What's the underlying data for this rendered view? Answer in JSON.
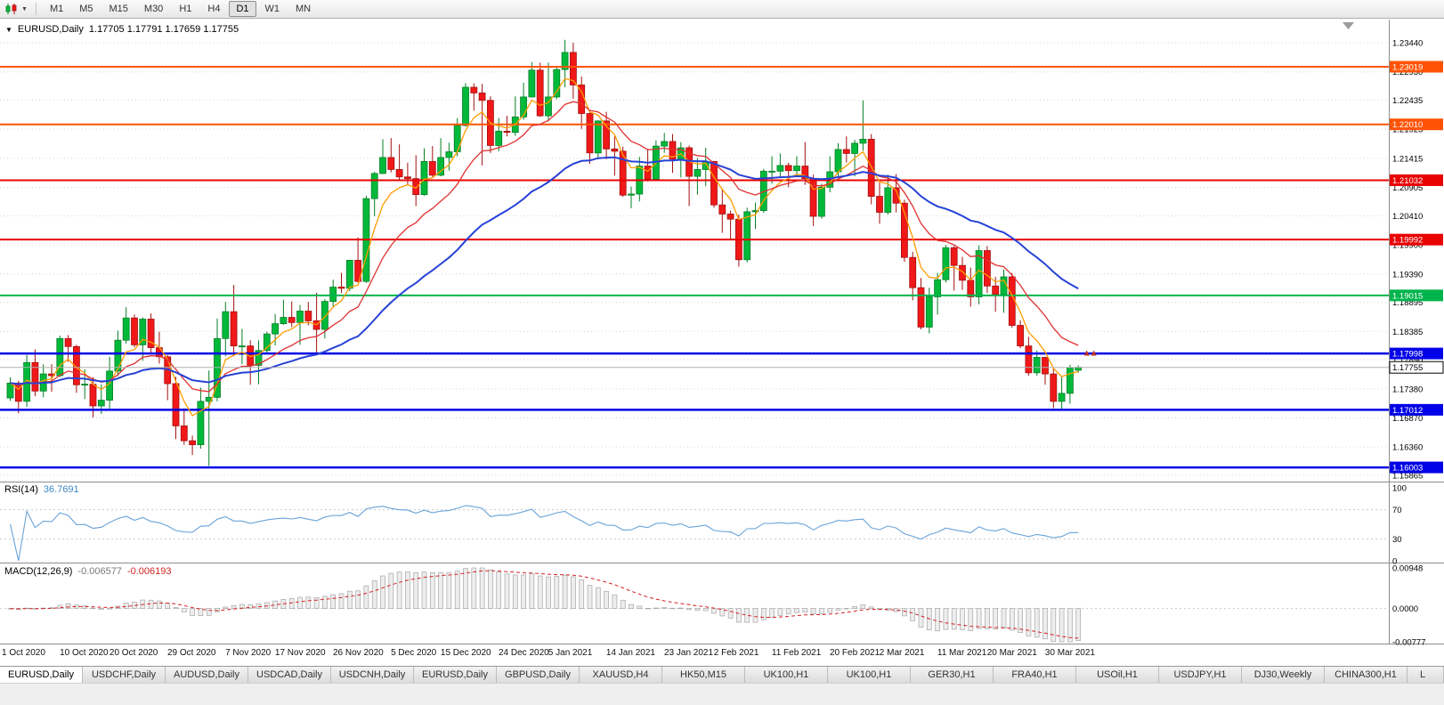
{
  "toolbar": {
    "timeframes": [
      "M1",
      "M5",
      "M15",
      "M30",
      "H1",
      "H4",
      "D1",
      "W1",
      "MN"
    ],
    "active_timeframe": "D1"
  },
  "chart_header": {
    "collapse_arrow": "▼",
    "symbol_period": "EURUSD,Daily",
    "ohlc": "1.17705 1.17791 1.17659 1.17755"
  },
  "indicators": {
    "rsi": {
      "name": "RSI(14)",
      "value": "36.7691"
    },
    "macd": {
      "name": "MACD(12,26,9)",
      "main_value": "-0.006577",
      "signal_value": "-0.006193"
    }
  },
  "chart_data": {
    "type": "candlestick",
    "symbol": "EURUSD",
    "period": "Daily",
    "current": {
      "open": "1.17705",
      "high": "1.17791",
      "low": "1.17659",
      "close": "1.17755"
    },
    "y_axis": {
      "ticks": [
        "1.23440",
        "1.22930",
        "1.22435",
        "1.21925",
        "1.21415",
        "1.20905",
        "1.20410",
        "1.19900",
        "1.19390",
        "1.18895",
        "1.18385",
        "1.17890",
        "1.17380",
        "1.16870",
        "1.16360",
        "1.15865"
      ]
    },
    "x_labels": [
      {
        "text": "1 Oct 2020",
        "bar": 0
      },
      {
        "text": "10 Oct 2020",
        "bar": 7
      },
      {
        "text": "20 Oct 2020",
        "bar": 13
      },
      {
        "text": "29 Oct 2020",
        "bar": 20
      },
      {
        "text": "7 Nov 2020",
        "bar": 27
      },
      {
        "text": "17 Nov 2020",
        "bar": 33
      },
      {
        "text": "26 Nov 2020",
        "bar": 40
      },
      {
        "text": "5 Dec 2020",
        "bar": 47
      },
      {
        "text": "15 Dec 2020",
        "bar": 53
      },
      {
        "text": "24 Dec 2020",
        "bar": 60
      },
      {
        "text": "5 Jan 2021",
        "bar": 66
      },
      {
        "text": "14 Jan 2021",
        "bar": 73
      },
      {
        "text": "23 Jan 2021",
        "bar": 80
      },
      {
        "text": "2 Feb 2021",
        "bar": 86
      },
      {
        "text": "11 Feb 2021",
        "bar": 93
      },
      {
        "text": "20 Feb 2021",
        "bar": 100
      },
      {
        "text": "2 Mar 2021",
        "bar": 106
      },
      {
        "text": "11 Mar 2021",
        "bar": 113
      },
      {
        "text": "20 Mar 2021",
        "bar": 119
      },
      {
        "text": "30 Mar 2021",
        "bar": 126
      }
    ],
    "candles": [
      [
        1.1722,
        1.1758,
        1.1717,
        1.1748
      ],
      [
        1.1748,
        1.1752,
        1.1695,
        1.1716
      ],
      [
        1.1716,
        1.1797,
        1.1706,
        1.1784
      ],
      [
        1.1784,
        1.1807,
        1.1725,
        1.1734
      ],
      [
        1.1734,
        1.1781,
        1.1723,
        1.1764
      ],
      [
        1.1764,
        1.1781,
        1.1733,
        1.1761
      ],
      [
        1.1761,
        1.1831,
        1.1758,
        1.1826
      ],
      [
        1.1826,
        1.1832,
        1.1785,
        1.1812
      ],
      [
        1.1812,
        1.1815,
        1.1731,
        1.1745
      ],
      [
        1.1745,
        1.1772,
        1.172,
        1.1746
      ],
      [
        1.1746,
        1.1758,
        1.1688,
        1.1708
      ],
      [
        1.1708,
        1.1746,
        1.1694,
        1.1718
      ],
      [
        1.1718,
        1.1794,
        1.1703,
        1.1769
      ],
      [
        1.1769,
        1.184,
        1.176,
        1.1823
      ],
      [
        1.1823,
        1.1881,
        1.1817,
        1.1862
      ],
      [
        1.1862,
        1.1868,
        1.1811,
        1.1815
      ],
      [
        1.1815,
        1.1863,
        1.1787,
        1.186
      ],
      [
        1.186,
        1.187,
        1.18,
        1.181
      ],
      [
        1.181,
        1.1838,
        1.1782,
        1.1794
      ],
      [
        1.1794,
        1.1797,
        1.1718,
        1.1747
      ],
      [
        1.1747,
        1.1759,
        1.165,
        1.1673
      ],
      [
        1.1673,
        1.1704,
        1.164,
        1.1647
      ],
      [
        1.1647,
        1.1656,
        1.1622,
        1.164
      ],
      [
        1.164,
        1.174,
        1.1633,
        1.1716
      ],
      [
        1.1716,
        1.177,
        1.1603,
        1.1723
      ],
      [
        1.1723,
        1.1861,
        1.1716,
        1.1826
      ],
      [
        1.1826,
        1.189,
        1.1795,
        1.1873
      ],
      [
        1.1873,
        1.192,
        1.1795,
        1.1813
      ],
      [
        1.1813,
        1.1843,
        1.1781,
        1.1813
      ],
      [
        1.1813,
        1.1823,
        1.1745,
        1.1779
      ],
      [
        1.1779,
        1.1823,
        1.1746,
        1.1805
      ],
      [
        1.1805,
        1.1838,
        1.1799,
        1.1834
      ],
      [
        1.1834,
        1.1869,
        1.1814,
        1.1852
      ],
      [
        1.1852,
        1.1894,
        1.185,
        1.1863
      ],
      [
        1.1863,
        1.1891,
        1.1846,
        1.1854
      ],
      [
        1.1854,
        1.1885,
        1.1815,
        1.1874
      ],
      [
        1.1874,
        1.189,
        1.1849,
        1.1857
      ],
      [
        1.1857,
        1.1906,
        1.18,
        1.1842
      ],
      [
        1.1842,
        1.1895,
        1.1826,
        1.1891
      ],
      [
        1.1891,
        1.1929,
        1.1881,
        1.1916
      ],
      [
        1.1916,
        1.1941,
        1.1906,
        1.1914
      ],
      [
        1.1914,
        1.1964,
        1.1909,
        1.1963
      ],
      [
        1.1963,
        1.2003,
        1.1924,
        1.1926
      ],
      [
        1.1926,
        1.2076,
        1.1923,
        1.2071
      ],
      [
        1.2071,
        1.2118,
        1.204,
        1.2115
      ],
      [
        1.2115,
        1.2175,
        1.2114,
        1.2143
      ],
      [
        1.2143,
        1.2177,
        1.2117,
        1.2122
      ],
      [
        1.2122,
        1.2166,
        1.2103,
        1.2109
      ],
      [
        1.2109,
        1.2134,
        1.2095,
        1.2106
      ],
      [
        1.2106,
        1.2147,
        1.2058,
        1.2078
      ],
      [
        1.2078,
        1.2159,
        1.2076,
        1.2136
      ],
      [
        1.2136,
        1.2163,
        1.2109,
        1.2112
      ],
      [
        1.2112,
        1.2177,
        1.211,
        1.2143
      ],
      [
        1.2143,
        1.2169,
        1.212,
        1.2153
      ],
      [
        1.2153,
        1.2212,
        1.2145,
        1.2199
      ],
      [
        1.2199,
        1.2273,
        1.2197,
        1.2266
      ],
      [
        1.2266,
        1.2273,
        1.2225,
        1.2256
      ],
      [
        1.2256,
        1.2272,
        1.2129,
        1.2243
      ],
      [
        1.2243,
        1.225,
        1.2151,
        1.2164
      ],
      [
        1.2164,
        1.2212,
        1.2154,
        1.2189
      ],
      [
        1.2189,
        1.2216,
        1.218,
        1.2187
      ],
      [
        1.2187,
        1.225,
        1.2181,
        1.2214
      ],
      [
        1.2214,
        1.2274,
        1.2209,
        1.2249
      ],
      [
        1.2249,
        1.231,
        1.2248,
        1.2296
      ],
      [
        1.2296,
        1.2309,
        1.2214,
        1.2216
      ],
      [
        1.2216,
        1.2309,
        1.2206,
        1.2249
      ],
      [
        1.2249,
        1.2303,
        1.2245,
        1.2297
      ],
      [
        1.2297,
        1.2349,
        1.2266,
        1.2327
      ],
      [
        1.2327,
        1.2344,
        1.2246,
        1.227
      ],
      [
        1.227,
        1.2285,
        1.2193,
        1.222
      ],
      [
        1.222,
        1.2223,
        1.2132,
        1.2151
      ],
      [
        1.2151,
        1.2208,
        1.214,
        1.2207
      ],
      [
        1.2207,
        1.2223,
        1.214,
        1.2158
      ],
      [
        1.2158,
        1.218,
        1.2111,
        1.2154
      ],
      [
        1.2154,
        1.2162,
        1.2074,
        1.2077
      ],
      [
        1.2077,
        1.2092,
        1.2054,
        1.2079
      ],
      [
        1.2079,
        1.2144,
        1.2066,
        1.2128
      ],
      [
        1.2128,
        1.2158,
        1.2101,
        1.2105
      ],
      [
        1.2105,
        1.2173,
        1.2103,
        1.2163
      ],
      [
        1.2163,
        1.2186,
        1.2151,
        1.2171
      ],
      [
        1.2171,
        1.2184,
        1.2116,
        1.214
      ],
      [
        1.214,
        1.217,
        1.2108,
        1.216
      ],
      [
        1.216,
        1.2164,
        1.2058,
        1.211
      ],
      [
        1.211,
        1.2142,
        1.2078,
        1.2122
      ],
      [
        1.2122,
        1.216,
        1.2093,
        1.2136
      ],
      [
        1.2136,
        1.2137,
        1.2055,
        1.206
      ],
      [
        1.206,
        1.2088,
        1.2011,
        1.2044
      ],
      [
        1.2044,
        1.205,
        1.1999,
        1.2035
      ],
      [
        1.2035,
        1.2043,
        1.1952,
        1.1964
      ],
      [
        1.1964,
        1.2055,
        1.1959,
        1.2048
      ],
      [
        1.2048,
        1.2064,
        1.2018,
        1.205
      ],
      [
        1.205,
        1.2123,
        1.2046,
        1.2119
      ],
      [
        1.2119,
        1.2145,
        1.2097,
        1.2119
      ],
      [
        1.2119,
        1.215,
        1.2108,
        1.2129
      ],
      [
        1.2129,
        1.2134,
        1.2091,
        1.212
      ],
      [
        1.212,
        1.2145,
        1.211,
        1.2128
      ],
      [
        1.2128,
        1.217,
        1.2095,
        1.2106
      ],
      [
        1.2106,
        1.2113,
        1.2023,
        1.204
      ],
      [
        1.204,
        1.2097,
        1.2036,
        1.2091
      ],
      [
        1.2091,
        1.2145,
        1.2082,
        1.2118
      ],
      [
        1.2118,
        1.2168,
        1.2107,
        1.2157
      ],
      [
        1.2157,
        1.218,
        1.2134,
        1.215
      ],
      [
        1.215,
        1.2174,
        1.211,
        1.2168
      ],
      [
        1.2168,
        1.2243,
        1.2155,
        1.2175
      ],
      [
        1.2175,
        1.2184,
        1.2061,
        1.2075
      ],
      [
        1.2075,
        1.2101,
        1.2027,
        1.2047
      ],
      [
        1.2047,
        1.2113,
        1.2043,
        1.209
      ],
      [
        1.209,
        1.2114,
        1.2047,
        1.2063
      ],
      [
        1.2063,
        1.2069,
        1.196,
        1.1968
      ],
      [
        1.1968,
        1.1978,
        1.1893,
        1.1915
      ],
      [
        1.1915,
        1.1932,
        1.1842,
        1.1846
      ],
      [
        1.1846,
        1.1915,
        1.1835,
        1.1899
      ],
      [
        1.1899,
        1.1941,
        1.1868,
        1.1929
      ],
      [
        1.1929,
        1.199,
        1.1924,
        1.1985
      ],
      [
        1.1985,
        1.1988,
        1.191,
        1.1954
      ],
      [
        1.1954,
        1.1969,
        1.1911,
        1.1928
      ],
      [
        1.1928,
        1.195,
        1.1882,
        1.1899
      ],
      [
        1.1899,
        1.1989,
        1.1886,
        1.198
      ],
      [
        1.198,
        1.1988,
        1.1906,
        1.1918
      ],
      [
        1.1918,
        1.1934,
        1.1873,
        1.1903
      ],
      [
        1.1903,
        1.1947,
        1.1871,
        1.1934
      ],
      [
        1.1934,
        1.1941,
        1.1845,
        1.1849
      ],
      [
        1.1849,
        1.1858,
        1.1809,
        1.1813
      ],
      [
        1.1813,
        1.1829,
        1.1761,
        1.1766
      ],
      [
        1.1766,
        1.1805,
        1.1761,
        1.1793
      ],
      [
        1.1793,
        1.1794,
        1.1745,
        1.1764
      ],
      [
        1.1764,
        1.1774,
        1.1704,
        1.1716
      ],
      [
        1.1716,
        1.176,
        1.1702,
        1.173
      ],
      [
        1.173,
        1.178,
        1.1712,
        1.1775
      ],
      [
        1.17705,
        1.17791,
        1.17659,
        1.17755
      ]
    ],
    "candle_colors": {
      "up": "#00b93a",
      "up_dark": "#067f26",
      "down": "#f01818",
      "down_dark": "#a31010"
    },
    "moving_averages": [
      {
        "type": "ema",
        "period": 5,
        "color": "#ff9c00",
        "width": 1.3
      },
      {
        "type": "ema",
        "period": 13,
        "color": "#e03131",
        "width": 1.3
      },
      {
        "type": "ema",
        "period": 34,
        "color": "#2742d6",
        "width": 2
      }
    ],
    "horizontal_lines": [
      {
        "price": 1.23019,
        "label": "1.23019",
        "color": "#ff5304",
        "width": 2
      },
      {
        "price": 1.2201,
        "label": "1.22010",
        "color": "#ff5304",
        "width": 2
      },
      {
        "price": 1.21032,
        "label": "1.21032",
        "color": "#e80202",
        "width": 2
      },
      {
        "price": 1.19992,
        "label": "1.19992",
        "color": "#e80202",
        "width": 2
      },
      {
        "price": 1.19015,
        "label": "1.19015",
        "color": "#00b44c",
        "width": 2
      },
      {
        "price": 1.17998,
        "label": "1.17998",
        "color": "#0202e8",
        "width": 2.5
      },
      {
        "price": 1.17012,
        "label": "1.17012",
        "color": "#0202e8",
        "width": 2.5
      },
      {
        "price": 1.16003,
        "label": "1.16003",
        "color": "#0202e8",
        "width": 2.5
      }
    ],
    "bid": {
      "price": 1.17755,
      "label": "1.17755"
    },
    "marker": {
      "bar": 129,
      "price": 1.1796,
      "color": "#c03022",
      "type": "double-up-arrow"
    },
    "rsi": {
      "period": 14,
      "color": "#69a3d8",
      "current": 36.7691,
      "ticks": [
        100,
        70,
        30,
        0
      ],
      "levels": [
        70,
        30
      ]
    },
    "macd": {
      "fast": 12,
      "slow": 26,
      "signal_period": 9,
      "current_main": -0.006577,
      "current_signal": -0.006193,
      "axis_max": 0.00948,
      "axis_min": -0.00777,
      "ticks": [
        "0.00948",
        "0.0000",
        "-0.00777"
      ],
      "hist_color": "#ededed",
      "hist_stroke": "#a6a6a6",
      "signal_color": "#d42222"
    }
  },
  "tabs": {
    "items": [
      {
        "label": "EURUSD,Daily",
        "active": true
      },
      {
        "label": "USDCHF,Daily"
      },
      {
        "label": "AUDUSD,Daily"
      },
      {
        "label": "USDCAD,Daily"
      },
      {
        "label": "USDCNH,Daily"
      },
      {
        "label": "EURUSD,Daily"
      },
      {
        "label": "GBPUSD,Daily"
      },
      {
        "label": "XAUUSD,H4"
      },
      {
        "label": "HK50,M15"
      },
      {
        "label": "UK100,H1"
      },
      {
        "label": "UK100,H1"
      },
      {
        "label": "GER30,H1"
      },
      {
        "label": "FRA40,H1"
      },
      {
        "label": "USOil,H1"
      },
      {
        "label": "USDJPY,H1"
      },
      {
        "label": "DJ30,Weekly"
      },
      {
        "label": "CHINA300,H1"
      },
      {
        "label": "L",
        "partial": true
      }
    ]
  }
}
